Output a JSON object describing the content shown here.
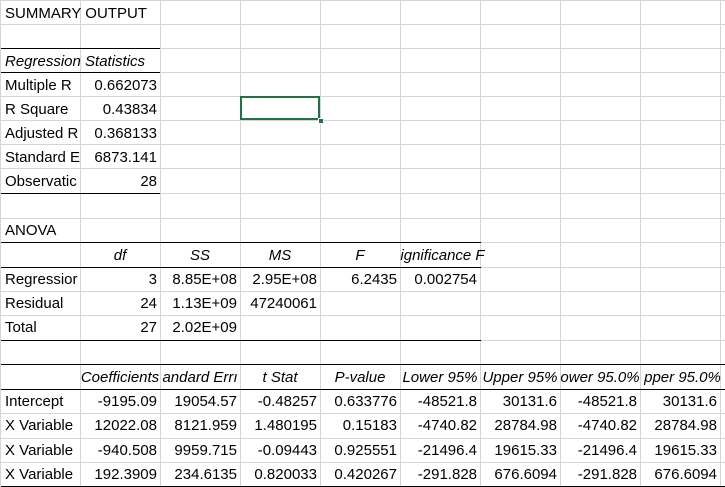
{
  "title": "SUMMARY OUTPUT",
  "regression_statistics": {
    "header": "Regression Statistics",
    "rows": [
      {
        "label": "Multiple R",
        "value": "0.662073"
      },
      {
        "label": "R Square",
        "value": "0.43834"
      },
      {
        "label": "Adjusted R",
        "value": "0.368133"
      },
      {
        "label": "Standard E",
        "value": "6873.141"
      },
      {
        "label": "Observatic",
        "value": "28"
      }
    ]
  },
  "anova": {
    "title": "ANOVA",
    "headers": [
      "df",
      "SS",
      "MS",
      "F",
      "ignificance F"
    ],
    "rows": [
      {
        "label": "Regressior",
        "cells": [
          "3",
          "8.85E+08",
          "2.95E+08",
          "6.2435",
          "0.002754"
        ]
      },
      {
        "label": "Residual",
        "cells": [
          "24",
          "1.13E+09",
          "47240061",
          "",
          ""
        ]
      },
      {
        "label": "Total",
        "cells": [
          "27",
          "2.02E+09",
          "",
          "",
          ""
        ]
      }
    ]
  },
  "coefficients": {
    "headers": [
      "Coefficients",
      "andard Errı",
      "t Stat",
      "P-value",
      "Lower 95%",
      "Upper 95%",
      "ower 95.0%",
      "pper 95.0%"
    ],
    "rows": [
      {
        "label": "Intercept",
        "cells": [
          "-9195.09",
          "19054.57",
          "-0.48257",
          "0.633776",
          "-48521.8",
          "30131.6",
          "-48521.8",
          "30131.6"
        ]
      },
      {
        "label": "X Variable",
        "cells": [
          "12022.08",
          "8121.959",
          "1.480195",
          "0.15183",
          "-4740.82",
          "28784.98",
          "-4740.82",
          "28784.98"
        ]
      },
      {
        "label": "X Variable",
        "cells": [
          "-940.508",
          "9959.715",
          "-0.09443",
          "0.925551",
          "-21496.4",
          "19615.33",
          "-21496.4",
          "19615.33"
        ]
      },
      {
        "label": "X Variable",
        "cells": [
          "192.3909",
          "234.6135",
          "0.820033",
          "0.420267",
          "-291.828",
          "676.6094",
          "-291.828",
          "676.6094"
        ]
      }
    ]
  },
  "colors": {
    "gridline": "#d4d4d4",
    "selection": "#217346"
  }
}
